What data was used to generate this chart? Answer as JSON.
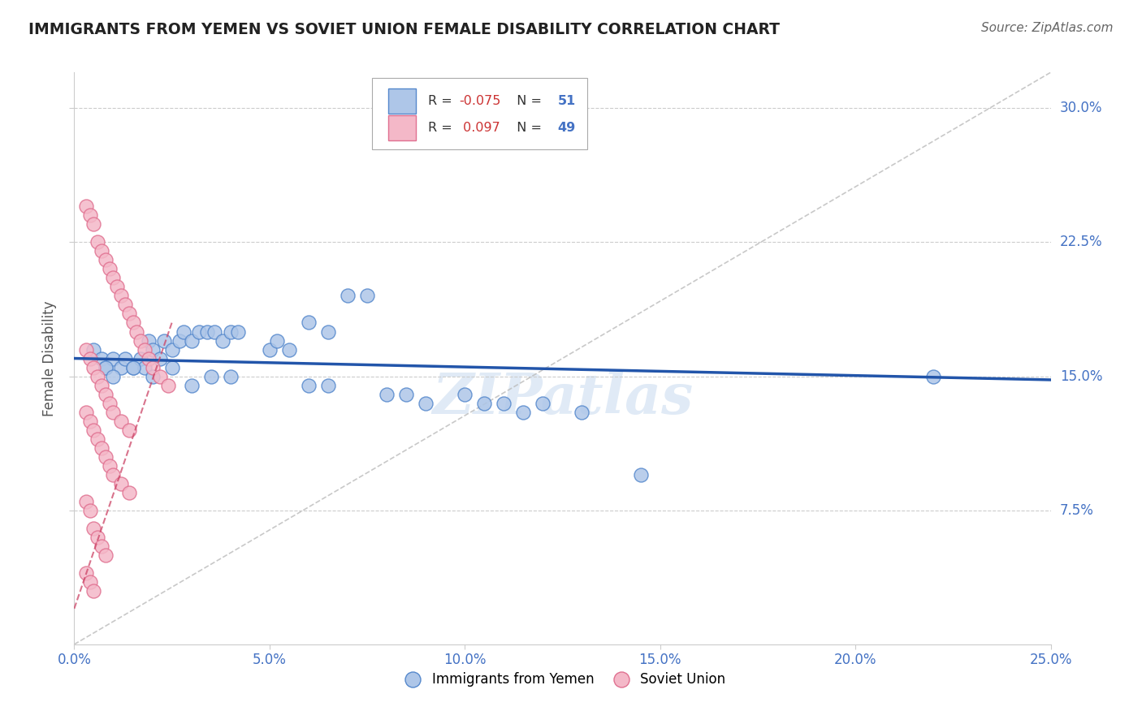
{
  "title": "IMMIGRANTS FROM YEMEN VS SOVIET UNION FEMALE DISABILITY CORRELATION CHART",
  "source": "Source: ZipAtlas.com",
  "ylabel": "Female Disability",
  "xlim": [
    0.0,
    0.25
  ],
  "ylim": [
    0.0,
    0.32
  ],
  "xticks": [
    0.0,
    0.05,
    0.1,
    0.15,
    0.2,
    0.25
  ],
  "xticklabels": [
    "0.0%",
    "5.0%",
    "10.0%",
    "15.0%",
    "20.0%",
    "25.0%"
  ],
  "yticks": [
    0.075,
    0.15,
    0.225,
    0.3
  ],
  "yticklabels": [
    "7.5%",
    "15.0%",
    "22.5%",
    "30.0%"
  ],
  "grid_color": "#cccccc",
  "background_color": "#ffffff",
  "yemen_color": "#aec6e8",
  "soviet_color": "#f4b8c8",
  "yemen_edge_color": "#5588cc",
  "soviet_edge_color": "#e07090",
  "yemen_R": -0.075,
  "yemen_N": 51,
  "soviet_R": 0.097,
  "soviet_N": 49,
  "trend_line_blue": "#2255aa",
  "trend_line_pink": "#cc4466",
  "ref_line_color": "#bbbbbb",
  "legend_label_yemen": "Immigrants from Yemen",
  "legend_label_soviet": "Soviet Union",
  "watermark": "ZIPatlas",
  "yemen_x": [
    0.005,
    0.007,
    0.008,
    0.01,
    0.012,
    0.013,
    0.015,
    0.017,
    0.018,
    0.019,
    0.02,
    0.022,
    0.023,
    0.025,
    0.027,
    0.028,
    0.03,
    0.032,
    0.034,
    0.036,
    0.038,
    0.04,
    0.042,
    0.05,
    0.052,
    0.055,
    0.06,
    0.065,
    0.07,
    0.075,
    0.008,
    0.01,
    0.015,
    0.02,
    0.025,
    0.03,
    0.035,
    0.04,
    0.06,
    0.065,
    0.08,
    0.085,
    0.09,
    0.1,
    0.105,
    0.11,
    0.115,
    0.12,
    0.13,
    0.145,
    0.22
  ],
  "yemen_y": [
    0.165,
    0.16,
    0.155,
    0.16,
    0.155,
    0.16,
    0.155,
    0.16,
    0.155,
    0.17,
    0.165,
    0.16,
    0.17,
    0.165,
    0.17,
    0.175,
    0.17,
    0.175,
    0.175,
    0.175,
    0.17,
    0.175,
    0.175,
    0.165,
    0.17,
    0.165,
    0.18,
    0.175,
    0.195,
    0.195,
    0.155,
    0.15,
    0.155,
    0.15,
    0.155,
    0.145,
    0.15,
    0.15,
    0.145,
    0.145,
    0.14,
    0.14,
    0.135,
    0.14,
    0.135,
    0.135,
    0.13,
    0.135,
    0.13,
    0.095,
    0.15
  ],
  "soviet_x": [
    0.003,
    0.004,
    0.005,
    0.006,
    0.007,
    0.008,
    0.009,
    0.01,
    0.011,
    0.012,
    0.013,
    0.014,
    0.015,
    0.016,
    0.017,
    0.018,
    0.019,
    0.02,
    0.022,
    0.024,
    0.003,
    0.004,
    0.005,
    0.006,
    0.007,
    0.008,
    0.009,
    0.01,
    0.012,
    0.014,
    0.003,
    0.004,
    0.005,
    0.006,
    0.007,
    0.008,
    0.009,
    0.01,
    0.012,
    0.014,
    0.003,
    0.004,
    0.005,
    0.006,
    0.007,
    0.008,
    0.003,
    0.004,
    0.005
  ],
  "soviet_y": [
    0.245,
    0.24,
    0.235,
    0.225,
    0.22,
    0.215,
    0.21,
    0.205,
    0.2,
    0.195,
    0.19,
    0.185,
    0.18,
    0.175,
    0.17,
    0.165,
    0.16,
    0.155,
    0.15,
    0.145,
    0.165,
    0.16,
    0.155,
    0.15,
    0.145,
    0.14,
    0.135,
    0.13,
    0.125,
    0.12,
    0.13,
    0.125,
    0.12,
    0.115,
    0.11,
    0.105,
    0.1,
    0.095,
    0.09,
    0.085,
    0.08,
    0.075,
    0.065,
    0.06,
    0.055,
    0.05,
    0.04,
    0.035,
    0.03
  ],
  "yemen_trendline_x": [
    0.0,
    0.25
  ],
  "yemen_trendline_y": [
    0.16,
    0.148
  ],
  "soviet_trendline_x": [
    0.0,
    0.025
  ],
  "soviet_trendline_y": [
    0.02,
    0.18
  ],
  "ref_line_x": [
    0.0,
    0.25
  ],
  "ref_line_y": [
    0.0,
    0.32
  ]
}
